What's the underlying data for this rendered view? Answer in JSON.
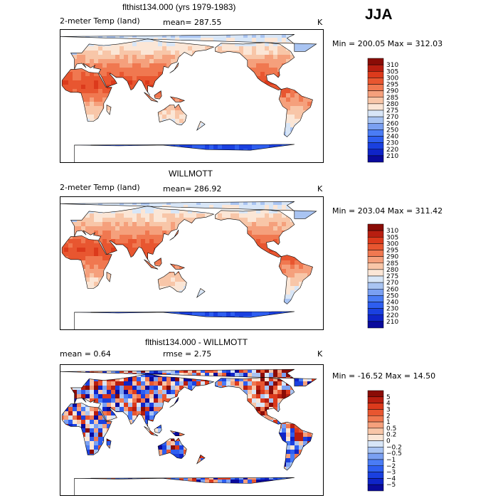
{
  "season": "JJA",
  "colors": {
    "abs": [
      "#0a0a9c",
      "#0f24c8",
      "#1a40e0",
      "#2e5ef0",
      "#4a7cf5",
      "#7aa0f2",
      "#a9c4f2",
      "#d8e6f7",
      "#fbe6d6",
      "#f8c6a8",
      "#f5a07c",
      "#f07850",
      "#e85630",
      "#dc3a1c",
      "#b81e10",
      "#8a0c06"
    ],
    "diff": [
      "#0a0a9c",
      "#0f24c8",
      "#1a40e0",
      "#2e5ef0",
      "#4a7cf5",
      "#7aa0f2",
      "#a9c4f2",
      "#d8e6f7",
      "#fbe6d6",
      "#f8c6a8",
      "#f5a07c",
      "#f07850",
      "#e85630",
      "#dc3a1c",
      "#b81e10",
      "#8a0c06"
    ]
  },
  "panels": [
    {
      "title": "flthist134.000 (yrs 1979-1983)",
      "left_label": "2-meter Temp (land)",
      "mean_text": "mean= 287.55",
      "unit": "K",
      "minmax": "Min = 200.05 Max = 312.03",
      "colorbar_labels": [
        "310",
        "305",
        "300",
        "295",
        "290",
        "285",
        "280",
        "275",
        "270",
        "260",
        "250",
        "240",
        "230",
        "220",
        "210"
      ],
      "scheme": "abs_model"
    },
    {
      "title": "WILLMOTT",
      "left_label": "2-meter Temp (land)",
      "mean_text": "mean= 286.92",
      "unit": "K",
      "minmax": "Min = 203.04 Max = 311.42",
      "colorbar_labels": [
        "310",
        "305",
        "300",
        "295",
        "290",
        "285",
        "280",
        "275",
        "270",
        "260",
        "250",
        "240",
        "230",
        "220",
        "210"
      ],
      "scheme": "abs_obs"
    },
    {
      "title": "flthist134.000 - WILLMOTT",
      "left_label": "mean =     0.64",
      "mean_text": "rmse =     2.75",
      "unit": "K",
      "minmax": "Min = -16.52 Max =   14.50",
      "colorbar_labels": [
        "5",
        "4",
        "3",
        "2",
        "1",
        "0.5",
        "0.2",
        "0",
        "−0.2",
        "−0.5",
        "−1",
        "−2",
        "−3",
        "−4",
        "−5"
      ],
      "scheme": "diff"
    }
  ]
}
